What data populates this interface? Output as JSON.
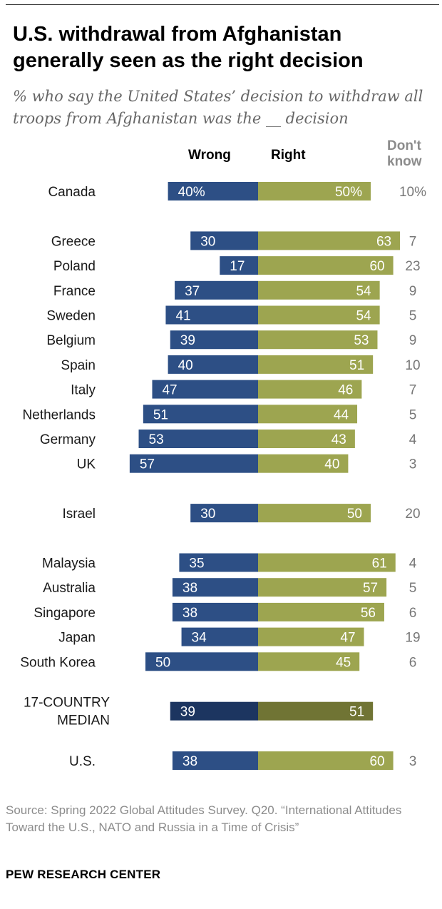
{
  "title": "U.S. withdrawal from Afghanistan generally seen as the right decision",
  "subtitle": "% who say the United States’ decision to withdraw all troops from Afghanistan was the __ decision",
  "column_headers": {
    "wrong": "Wrong",
    "right": "Right",
    "dont_know_line1": "Don't",
    "dont_know_line2": "know"
  },
  "colors": {
    "wrong": "#2d4f85",
    "right": "#9da550",
    "median_wrong": "#1c3560",
    "median_right": "#707434",
    "dont_know_text": "#777777"
  },
  "chart_data": {
    "type": "bar",
    "orientation": "horizontal-diverging",
    "series": [
      {
        "name": "Wrong",
        "key": "wrong"
      },
      {
        "name": "Right",
        "key": "right"
      },
      {
        "name": "Don't know",
        "key": "dk"
      }
    ],
    "rows": [
      {
        "label": "Canada",
        "wrong": 40,
        "right": 50,
        "dk": 10,
        "wrong_label": "40%",
        "right_label": "50%",
        "dk_label": "10%",
        "group": 0
      },
      {
        "label": "Greece",
        "wrong": 30,
        "right": 63,
        "dk": 7,
        "wrong_label": "30",
        "right_label": "63",
        "dk_label": "7",
        "group": 1
      },
      {
        "label": "Poland",
        "wrong": 17,
        "right": 60,
        "dk": 23,
        "wrong_label": "17",
        "right_label": "60",
        "dk_label": "23",
        "group": 1
      },
      {
        "label": "France",
        "wrong": 37,
        "right": 54,
        "dk": 9,
        "wrong_label": "37",
        "right_label": "54",
        "dk_label": "9",
        "group": 1
      },
      {
        "label": "Sweden",
        "wrong": 41,
        "right": 54,
        "dk": 5,
        "wrong_label": "41",
        "right_label": "54",
        "dk_label": "5",
        "group": 1
      },
      {
        "label": "Belgium",
        "wrong": 39,
        "right": 53,
        "dk": 9,
        "wrong_label": "39",
        "right_label": "53",
        "dk_label": "9",
        "group": 1
      },
      {
        "label": "Spain",
        "wrong": 40,
        "right": 51,
        "dk": 10,
        "wrong_label": "40",
        "right_label": "51",
        "dk_label": "10",
        "group": 1
      },
      {
        "label": "Italy",
        "wrong": 47,
        "right": 46,
        "dk": 7,
        "wrong_label": "47",
        "right_label": "46",
        "dk_label": "7",
        "group": 1
      },
      {
        "label": "Netherlands",
        "wrong": 51,
        "right": 44,
        "dk": 5,
        "wrong_label": "51",
        "right_label": "44",
        "dk_label": "5",
        "group": 1
      },
      {
        "label": "Germany",
        "wrong": 53,
        "right": 43,
        "dk": 4,
        "wrong_label": "53",
        "right_label": "43",
        "dk_label": "4",
        "group": 1
      },
      {
        "label": "UK",
        "wrong": 57,
        "right": 40,
        "dk": 3,
        "wrong_label": "57",
        "right_label": "40",
        "dk_label": "3",
        "group": 1
      },
      {
        "label": "Israel",
        "wrong": 30,
        "right": 50,
        "dk": 20,
        "wrong_label": "30",
        "right_label": "50",
        "dk_label": "20",
        "group": 2
      },
      {
        "label": "Malaysia",
        "wrong": 35,
        "right": 61,
        "dk": 4,
        "wrong_label": "35",
        "right_label": "61",
        "dk_label": "4",
        "group": 3
      },
      {
        "label": "Australia",
        "wrong": 38,
        "right": 57,
        "dk": 5,
        "wrong_label": "38",
        "right_label": "57",
        "dk_label": "5",
        "group": 3
      },
      {
        "label": "Singapore",
        "wrong": 38,
        "right": 56,
        "dk": 6,
        "wrong_label": "38",
        "right_label": "56",
        "dk_label": "6",
        "group": 3
      },
      {
        "label": "Japan",
        "wrong": 34,
        "right": 47,
        "dk": 19,
        "wrong_label": "34",
        "right_label": "47",
        "dk_label": "19",
        "group": 3
      },
      {
        "label": "South Korea",
        "wrong": 50,
        "right": 45,
        "dk": 6,
        "wrong_label": "50",
        "right_label": "45",
        "dk_label": "6",
        "group": 3
      },
      {
        "label": "17-COUNTRY MEDIAN",
        "label_lines": [
          "17-COUNTRY",
          "MEDIAN"
        ],
        "wrong": 39,
        "right": 51,
        "dk": null,
        "wrong_label": "39",
        "right_label": "51",
        "dk_label": "",
        "group": 4,
        "median": true
      },
      {
        "label": "U.S.",
        "wrong": 38,
        "right": 60,
        "dk": 3,
        "wrong_label": "38",
        "right_label": "60",
        "dk_label": "3",
        "group": 5
      }
    ],
    "xlim": [
      -60,
      65
    ],
    "units": "percent"
  },
  "source": "Source: Spring 2022 Global Attitudes Survey. Q20. “International Attitudes Toward the U.S., NATO and Russia in a Time of Crisis”",
  "brand": "PEW RESEARCH CENTER"
}
